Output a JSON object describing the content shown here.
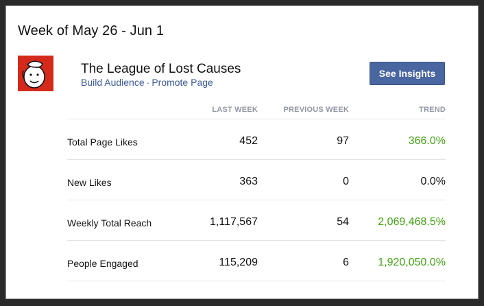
{
  "header": {
    "week_title": "Week of May 26 - Jun 1"
  },
  "page": {
    "name": "The League of Lost Causes",
    "link_build": "Build Audience",
    "link_separator": "·",
    "link_promote": "Promote Page",
    "insights_button": "See Insights",
    "avatar_icon": "cartoon-face-avatar"
  },
  "table": {
    "columns": [
      "LAST WEEK",
      "PREVIOUS WEEK",
      "TREND"
    ],
    "rows": [
      {
        "label": "Total Page Likes",
        "last_week": "452",
        "previous_week": "97",
        "trend": "366.0%",
        "trend_positive": true
      },
      {
        "label": "New Likes",
        "last_week": "363",
        "previous_week": "0",
        "trend": "0.0%",
        "trend_positive": false
      },
      {
        "label": "Weekly Total Reach",
        "last_week": "1,117,567",
        "previous_week": "54",
        "trend": "2,069,468.5%",
        "trend_positive": true
      },
      {
        "label": "People Engaged",
        "last_week": "115,209",
        "previous_week": "6",
        "trend": "1,920,050.0%",
        "trend_positive": true
      }
    ]
  },
  "colors": {
    "link": "#3b5998",
    "button": "#4a66a0",
    "positive": "#42a015",
    "avatar_bg": "#d42a1c"
  }
}
